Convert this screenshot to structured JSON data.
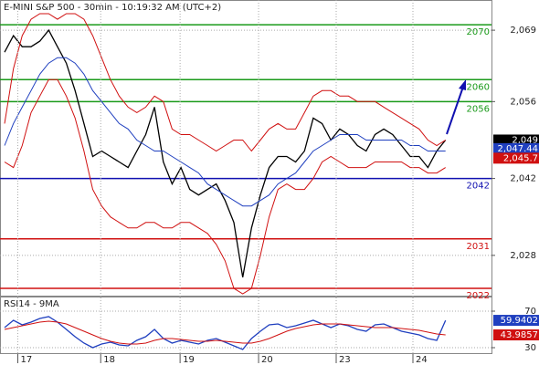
{
  "chart_data": [
    {
      "type": "line",
      "title": "E-MINI S&P 500 - 30min - 10:19:32 AM (UTC+2)",
      "xlim": [
        0,
        55
      ],
      "ylim": [
        2020.5,
        2074.5
      ],
      "yticks": [
        {
          "value": 2069,
          "label": "2,069"
        },
        {
          "value": 2056,
          "label": "2,056"
        },
        {
          "value": 2042,
          "label": "2,042"
        },
        {
          "value": 2028,
          "label": "2,028"
        }
      ],
      "grid": true,
      "x": [
        0,
        1,
        2,
        3,
        4,
        5,
        6,
        7,
        8,
        9,
        10,
        11,
        12,
        13,
        14,
        15,
        16,
        17,
        18,
        19,
        20,
        21,
        22,
        23,
        24,
        25,
        26,
        27,
        28,
        29,
        30,
        31,
        32,
        33,
        34,
        35,
        36,
        37,
        38,
        39,
        40,
        41,
        42,
        43,
        44,
        45,
        46,
        47,
        48,
        49,
        50
      ],
      "series": [
        {
          "color": "#000000",
          "values": [
            2065,
            2068,
            2066,
            2066,
            2067,
            2069,
            2066,
            2063,
            2058,
            2052,
            2046,
            2047,
            2046,
            2045,
            2044,
            2047,
            2050,
            2055,
            2045,
            2041,
            2044,
            2040,
            2039,
            2040,
            2041,
            2038,
            2034,
            2024,
            2033,
            2039,
            2044,
            2046,
            2046,
            2045,
            2047,
            2053,
            2052,
            2049,
            2051,
            2050,
            2048,
            2047,
            2050,
            2051,
            2050,
            2048,
            2046,
            2046,
            2044,
            2047,
            2049
          ]
        },
        {
          "color": "#d01010",
          "values": [
            2052,
            2062,
            2068,
            2071,
            2072,
            2072,
            2071,
            2072,
            2072,
            2071,
            2068,
            2064,
            2060,
            2057,
            2055,
            2054,
            2055,
            2057,
            2056,
            2051,
            2050,
            2050,
            2049,
            2048,
            2047,
            2048,
            2049,
            2049,
            2047,
            2049,
            2051,
            2052,
            2051,
            2051,
            2054,
            2057,
            2058,
            2058,
            2057,
            2057,
            2056,
            2056,
            2056,
            2055,
            2054,
            2053,
            2052,
            2051,
            2049,
            2048,
            2049
          ]
        },
        {
          "color": "#d01010",
          "values": [
            2045,
            2044,
            2048,
            2054,
            2057,
            2060,
            2060,
            2057,
            2053,
            2047,
            2040,
            2037,
            2035,
            2034,
            2033,
            2033,
            2034,
            2034,
            2033,
            2033,
            2034,
            2034,
            2033,
            2032,
            2030,
            2027,
            2022,
            2021,
            2022,
            2028,
            2035,
            2040,
            2041,
            2040,
            2040,
            2042,
            2045,
            2046,
            2045,
            2044,
            2044,
            2044,
            2045,
            2045,
            2045,
            2045,
            2044,
            2044,
            2043,
            2043,
            2044
          ]
        },
        {
          "color": "#1f3fbf",
          "values": [
            2048,
            2052,
            2055,
            2058,
            2061,
            2063,
            2064,
            2064,
            2063,
            2061,
            2058,
            2056,
            2054,
            2052,
            2051,
            2049,
            2048,
            2047,
            2047,
            2046,
            2045,
            2044,
            2043,
            2041,
            2040,
            2039,
            2038,
            2037,
            2037,
            2038,
            2039,
            2041,
            2042,
            2043,
            2045,
            2047,
            2048,
            2049,
            2050,
            2050,
            2050,
            2049,
            2049,
            2049,
            2049,
            2049,
            2048,
            2048,
            2047,
            2047,
            2047
          ]
        }
      ],
      "levels": [
        {
          "value": 2070,
          "color": "#1a9a1a"
        },
        {
          "value": 2060,
          "color": "#1a9a1a"
        },
        {
          "value": 2056,
          "color": "#1a9a1a"
        },
        {
          "value": 2042,
          "color": "#1010b0"
        },
        {
          "value": 2031,
          "color": "#d01010"
        },
        {
          "value": 2022,
          "color": "#d01010"
        }
      ],
      "markers": [
        {
          "value": 2049,
          "label": "2,049",
          "color": "#000000"
        },
        {
          "value": 2047.44,
          "label": "2,047.44",
          "color": "#1f3fbf"
        },
        {
          "value": 2045.7,
          "label": "2,045.7",
          "color": "#d01010"
        }
      ]
    },
    {
      "type": "line",
      "title": "RSI14 - 9MA",
      "xlim": [
        0,
        55
      ],
      "ylim": [
        23,
        85
      ],
      "yticks": [
        70,
        30
      ],
      "xticks": [
        {
          "value": 1.5,
          "label": "17"
        },
        {
          "value": 10.9,
          "label": "18"
        },
        {
          "value": 19.9,
          "label": "19"
        },
        {
          "value": 28.8,
          "label": "20"
        },
        {
          "value": 37.6,
          "label": "23"
        },
        {
          "value": 46.3,
          "label": "24"
        }
      ],
      "x": [
        0,
        1,
        2,
        3,
        4,
        5,
        6,
        7,
        8,
        9,
        10,
        11,
        12,
        13,
        14,
        15,
        16,
        17,
        18,
        19,
        20,
        21,
        22,
        23,
        24,
        25,
        26,
        27,
        28,
        29,
        30,
        31,
        32,
        33,
        34,
        35,
        36,
        37,
        38,
        39,
        40,
        41,
        42,
        43,
        44,
        45,
        46,
        47,
        48,
        49,
        50
      ],
      "series": [
        {
          "color": "#1f3fbf",
          "values": [
            52,
            60,
            55,
            58,
            62,
            64,
            58,
            50,
            42,
            35,
            30,
            34,
            36,
            33,
            32,
            38,
            42,
            50,
            40,
            35,
            38,
            36,
            34,
            38,
            40,
            36,
            32,
            28,
            40,
            48,
            55,
            56,
            52,
            54,
            57,
            60,
            56,
            52,
            56,
            54,
            50,
            48,
            55,
            56,
            52,
            48,
            46,
            44,
            40,
            38,
            59.9402
          ]
        },
        {
          "color": "#d01010",
          "values": [
            50,
            52,
            54,
            56,
            58,
            59,
            58,
            56,
            52,
            48,
            44,
            40,
            37,
            35,
            34,
            34,
            35,
            38,
            40,
            40,
            39,
            38,
            37,
            37,
            38,
            37,
            36,
            35,
            35,
            37,
            40,
            44,
            48,
            51,
            53,
            55,
            56,
            56,
            56,
            55,
            54,
            53,
            52,
            52,
            52,
            51,
            50,
            49,
            47,
            45,
            43.9857
          ]
        }
      ],
      "markers": [
        {
          "value": 59.9402,
          "color": "#1f3fbf"
        },
        {
          "value": 43.9857,
          "color": "#d01010"
        }
      ]
    }
  ]
}
